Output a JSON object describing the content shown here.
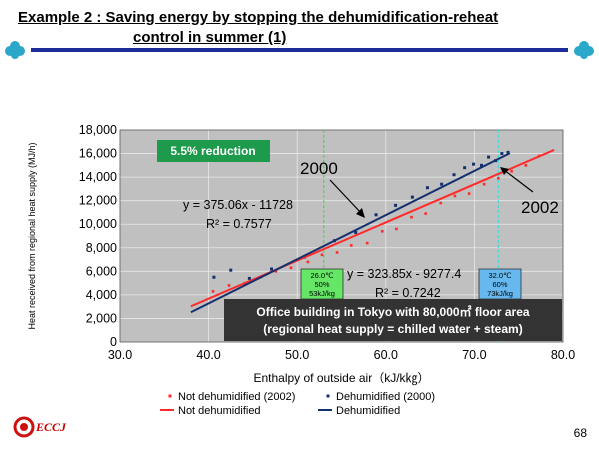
{
  "slide": {
    "title_line1": "Example 2 : Saving energy by stopping the dehumidification-reheat",
    "title_line2": "control in summer (1)",
    "page_number": "68",
    "logo_text": "ECCJ"
  },
  "colors": {
    "title_rule": "#1e2c9a",
    "clover": "#2aa7c9",
    "plot_bg": "#c0c0c0",
    "not_dehumidified": "#ff2a2a",
    "dehumidified": "#14306e",
    "reduction_box": "#1d9a4b",
    "note_box": "#333333"
  },
  "chart_data": {
    "type": "scatter",
    "xlabel": "Enthalpy of outside air（kJ/k㎏）",
    "ylabel": "Heat received from regional heat supply (MJ/h)",
    "xlim": [
      30,
      80
    ],
    "ylim": [
      0,
      18000
    ],
    "xticks": [
      "30.0",
      "40.0",
      "50.0",
      "60.0",
      "70.0",
      "80.0"
    ],
    "yticks": [
      "0",
      "2,000",
      "4,000",
      "6,000",
      "8,000",
      "10,000",
      "12,000",
      "14,000",
      "16,000",
      "18,000"
    ],
    "grid": true,
    "series": [
      {
        "name": "Not dehumidified (2002)",
        "kind": "points",
        "x": [
          40.5,
          42.3,
          44.1,
          45.8,
          47.6,
          49.3,
          51.2,
          52.8,
          54.5,
          56.1,
          57.9,
          59.6,
          61.2,
          62.9,
          64.5,
          66.2,
          67.8,
          69.4,
          71.1,
          72.7,
          74.2,
          75.8,
          77.3
        ],
        "y": [
          4300,
          4800,
          5000,
          5500,
          6000,
          6300,
          6800,
          7400,
          7600,
          8200,
          8400,
          9400,
          9600,
          10600,
          10900,
          11800,
          12400,
          12600,
          13400,
          13900,
          14500,
          15000,
          15800
        ]
      },
      {
        "name": "Dehumidified (2000)",
        "kind": "points",
        "x": [
          40.6,
          42.5,
          44.6,
          47.1,
          50.8,
          54.2,
          56.6,
          58.9,
          61.1,
          63.0,
          64.7,
          66.3,
          67.7,
          68.9,
          69.9,
          70.8,
          71.6,
          72.4,
          73.1,
          73.8
        ],
        "y": [
          5500,
          6100,
          5400,
          6200,
          7200,
          8600,
          9300,
          10800,
          11600,
          12300,
          13100,
          13400,
          14200,
          14800,
          15100,
          15000,
          15700,
          15400,
          16000,
          16100
        ]
      },
      {
        "name": "Not dehumidified",
        "kind": "trendline",
        "slope": 323.85,
        "intercept": -9277.4,
        "x_range": [
          38,
          79
        ]
      },
      {
        "name": "Dehumidified",
        "kind": "trendline",
        "slope": 375.06,
        "intercept": -11728,
        "x_range": [
          38,
          74
        ]
      }
    ],
    "annotations": {
      "eq_dehumidified": "y = 375.06x - 11728",
      "r2_dehumidified": "R² = 0.7577",
      "eq_not_dehumidified": "y = 323.85x - 9277.4",
      "r2_not_dehumidified": "R² = 0.7242",
      "label_2000": "2000",
      "label_2002": "2002",
      "reduction": "5.5% reduction",
      "note_line1": "Office building in Tokyo with 80,000㎡ floor area",
      "note_line2": "(regional heat supply = chilled water + steam)",
      "cond_left": [
        "26.0℃",
        "50%",
        "53kJ/kg"
      ],
      "cond_right": [
        "32.0℃",
        "60%",
        "73kJ/kg"
      ],
      "cond_left_x": 53,
      "cond_right_x": 72.7
    },
    "legend": {
      "placement": "bottom",
      "items": [
        {
          "label": "Not dehumidified (2002)",
          "marker": "dot-red"
        },
        {
          "label": "Dehumidified (2000)",
          "marker": "dot-navy"
        },
        {
          "label": "Not dehumidified",
          "marker": "line-red"
        },
        {
          "label": "Dehumidified",
          "marker": "line-navy"
        }
      ]
    }
  }
}
